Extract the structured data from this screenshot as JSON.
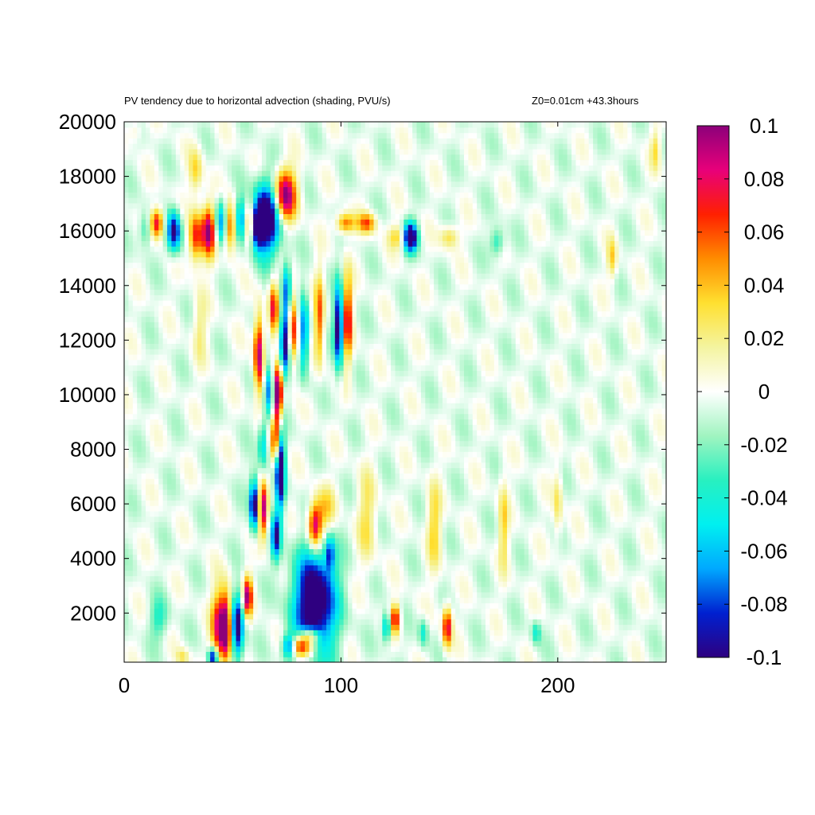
{
  "chart_data": {
    "type": "heatmap",
    "title": "PV tendency due to horizontal advection (shading, PVU/s)",
    "subtitle": "Z0=0.01cm   +43.3hours",
    "xlabel": "",
    "ylabel": "",
    "xlim": [
      0,
      250
    ],
    "ylim": [
      200,
      20000
    ],
    "x_ticks": [
      0,
      100,
      200
    ],
    "x_tick_labels": [
      "0",
      "100",
      "200"
    ],
    "y_ticks": [
      2000,
      4000,
      6000,
      8000,
      10000,
      12000,
      14000,
      16000,
      18000,
      20000
    ],
    "y_tick_labels": [
      "2000",
      "4000",
      "6000",
      "8000",
      "10000",
      "12000",
      "14000",
      "16000",
      "18000",
      "20000"
    ],
    "colorbar": {
      "range": [
        -0.1,
        0.1
      ],
      "ticks": [
        -0.1,
        -0.08,
        -0.06,
        -0.04,
        -0.02,
        0,
        0.02,
        0.04,
        0.06,
        0.08,
        0.1
      ],
      "tick_labels": [
        "-0.1",
        "-0.08",
        "-0.06",
        "-0.04",
        "-0.02",
        "0",
        "0.02",
        "0.04",
        "0.06",
        "0.08",
        "0.1"
      ],
      "colors": [
        "#2e0080",
        "#0020d0",
        "#00a8ff",
        "#00f0f0",
        "#28f0c0",
        "#a0f4c0",
        "#ffffff",
        "#f4f4a0",
        "#ffe030",
        "#ff8c00",
        "#ff2000",
        "#e8007a",
        "#8c007a"
      ]
    },
    "grid": false,
    "features": [
      {
        "x": 66,
        "y": 16500,
        "value": -0.1,
        "rx": 6,
        "ry": 1200
      },
      {
        "x": 74,
        "y": 17300,
        "value": 0.09,
        "rx": 5,
        "ry": 900
      },
      {
        "x": 61,
        "y": 16200,
        "value": -0.09,
        "rx": 3,
        "ry": 700
      },
      {
        "x": 58,
        "y": 16300,
        "value": 0.08,
        "rx": 3,
        "ry": 700
      },
      {
        "x": 54,
        "y": 16400,
        "value": -0.07,
        "rx": 3,
        "ry": 700
      },
      {
        "x": 49,
        "y": 16200,
        "value": 0.07,
        "rx": 3,
        "ry": 800
      },
      {
        "x": 45,
        "y": 16300,
        "value": -0.06,
        "rx": 3,
        "ry": 800
      },
      {
        "x": 39,
        "y": 16000,
        "value": 0.08,
        "rx": 3,
        "ry": 900
      },
      {
        "x": 33,
        "y": 15800,
        "value": 0.06,
        "rx": 3,
        "ry": 900
      },
      {
        "x": 23,
        "y": 16000,
        "value": -0.08,
        "rx": 3,
        "ry": 700
      },
      {
        "x": 15,
        "y": 16300,
        "value": 0.07,
        "rx": 3,
        "ry": 500
      },
      {
        "x": 10,
        "y": 16100,
        "value": -0.03,
        "rx": 3,
        "ry": 600
      },
      {
        "x": 132,
        "y": 15800,
        "value": -0.1,
        "rx": 3,
        "ry": 500
      },
      {
        "x": 112,
        "y": 16300,
        "value": 0.05,
        "rx": 4,
        "ry": 350
      },
      {
        "x": 102,
        "y": 16300,
        "value": 0.05,
        "rx": 4,
        "ry": 350
      },
      {
        "x": 126,
        "y": 15800,
        "value": 0.03,
        "rx": 4,
        "ry": 400
      },
      {
        "x": 150,
        "y": 15800,
        "value": 0.03,
        "rx": 4,
        "ry": 400
      },
      {
        "x": 172,
        "y": 15600,
        "value": -0.03,
        "rx": 3,
        "ry": 500
      },
      {
        "x": 88,
        "y": 2400,
        "value": -0.1,
        "rx": 9,
        "ry": 1800
      },
      {
        "x": 82,
        "y": 800,
        "value": 0.09,
        "rx": 6,
        "ry": 400
      },
      {
        "x": 86,
        "y": 1200,
        "value": 0.05,
        "rx": 4,
        "ry": 250
      },
      {
        "x": 76,
        "y": 800,
        "value": -0.08,
        "rx": 3,
        "ry": 400
      },
      {
        "x": 88,
        "y": 5200,
        "value": 0.08,
        "rx": 3,
        "ry": 800
      },
      {
        "x": 95,
        "y": 4200,
        "value": -0.05,
        "rx": 2,
        "ry": 600
      },
      {
        "x": 93,
        "y": 5800,
        "value": 0.03,
        "rx": 4,
        "ry": 800
      },
      {
        "x": 47,
        "y": 1500,
        "value": 0.1,
        "rx": 3,
        "ry": 1200
      },
      {
        "x": 52,
        "y": 1500,
        "value": -0.09,
        "rx": 3,
        "ry": 1100
      },
      {
        "x": 43,
        "y": 1600,
        "value": 0.05,
        "rx": 3,
        "ry": 1200
      },
      {
        "x": 57,
        "y": 2600,
        "value": 0.08,
        "rx": 2,
        "ry": 700
      },
      {
        "x": 41,
        "y": 400,
        "value": -0.08,
        "rx": 2,
        "ry": 300
      },
      {
        "x": 60,
        "y": 6000,
        "value": -0.09,
        "rx": 2,
        "ry": 900
      },
      {
        "x": 64,
        "y": 5800,
        "value": 0.08,
        "rx": 2,
        "ry": 900
      },
      {
        "x": 72,
        "y": 7300,
        "value": -0.1,
        "rx": 2,
        "ry": 1400
      },
      {
        "x": 70,
        "y": 4800,
        "value": -0.07,
        "rx": 2,
        "ry": 800
      },
      {
        "x": 67,
        "y": 10200,
        "value": -0.06,
        "rx": 2,
        "ry": 900
      },
      {
        "x": 71,
        "y": 10000,
        "value": 0.1,
        "rx": 2,
        "ry": 1000
      },
      {
        "x": 62,
        "y": 11500,
        "value": 0.08,
        "rx": 2,
        "ry": 1400
      },
      {
        "x": 74,
        "y": 12000,
        "value": -0.08,
        "rx": 2,
        "ry": 1200
      },
      {
        "x": 69,
        "y": 13200,
        "value": 0.06,
        "rx": 2,
        "ry": 900
      },
      {
        "x": 75,
        "y": 14000,
        "value": -0.05,
        "rx": 2,
        "ry": 900
      },
      {
        "x": 78,
        "y": 12500,
        "value": 0.06,
        "rx": 2,
        "ry": 1200
      },
      {
        "x": 83,
        "y": 12200,
        "value": -0.06,
        "rx": 2,
        "ry": 1300
      },
      {
        "x": 90,
        "y": 12800,
        "value": 0.05,
        "rx": 2,
        "ry": 1500
      },
      {
        "x": 99,
        "y": 12500,
        "value": -0.09,
        "rx": 2,
        "ry": 1400
      },
      {
        "x": 103,
        "y": 12800,
        "value": 0.07,
        "rx": 2,
        "ry": 1500
      },
      {
        "x": 70,
        "y": 8300,
        "value": 0.07,
        "rx": 2,
        "ry": 800
      },
      {
        "x": 64,
        "y": 8200,
        "value": -0.04,
        "rx": 2,
        "ry": 900
      },
      {
        "x": 125,
        "y": 1800,
        "value": 0.07,
        "rx": 2,
        "ry": 500
      },
      {
        "x": 121,
        "y": 1500,
        "value": -0.05,
        "rx": 2,
        "ry": 500
      },
      {
        "x": 149,
        "y": 1500,
        "value": 0.07,
        "rx": 2,
        "ry": 700
      },
      {
        "x": 138,
        "y": 1300,
        "value": -0.03,
        "rx": 2,
        "ry": 500
      },
      {
        "x": 190,
        "y": 1300,
        "value": -0.03,
        "rx": 2,
        "ry": 400
      },
      {
        "x": 33,
        "y": 18200,
        "value": 0.03,
        "rx": 3,
        "ry": 800
      },
      {
        "x": 35,
        "y": 12500,
        "value": 0.02,
        "rx": 3,
        "ry": 1200
      },
      {
        "x": 143,
        "y": 5200,
        "value": 0.03,
        "rx": 3,
        "ry": 1500
      },
      {
        "x": 175,
        "y": 5200,
        "value": 0.03,
        "rx": 2,
        "ry": 1500
      },
      {
        "x": 200,
        "y": 6000,
        "value": 0.025,
        "rx": 2,
        "ry": 1200
      },
      {
        "x": 245,
        "y": 19000,
        "value": 0.025,
        "rx": 2,
        "ry": 700
      },
      {
        "x": 225,
        "y": 15000,
        "value": 0.03,
        "rx": 2,
        "ry": 700
      },
      {
        "x": 5,
        "y": 19700,
        "value": 0.015,
        "rx": 3,
        "ry": 400
      },
      {
        "x": 112,
        "y": 5500,
        "value": 0.025,
        "rx": 4,
        "ry": 1600
      },
      {
        "x": 27,
        "y": 400,
        "value": 0.025,
        "rx": 3,
        "ry": 300
      },
      {
        "x": 16,
        "y": 1800,
        "value": -0.025,
        "rx": 4,
        "ry": 700
      }
    ]
  }
}
